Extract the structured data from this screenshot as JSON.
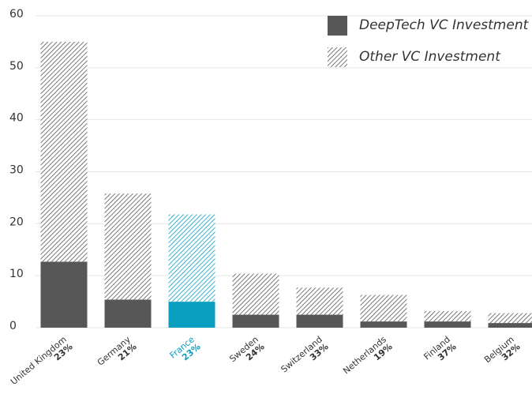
{
  "chart_data": {
    "type": "stacked_bar",
    "categories": [
      "United Kingdom",
      "Germany",
      "France",
      "Sweden",
      "Switzerland",
      "Netherlands",
      "Finland",
      "Belgium"
    ],
    "shares": {
      "values": [
        23,
        21,
        23,
        24,
        33,
        19,
        37,
        32
      ],
      "value_labels": [
        "23%",
        "21%",
        "23%",
        "24%",
        "33%",
        "19%",
        "37%",
        "32%"
      ]
    },
    "series": [
      {
        "name": "DeepTech VC Investment",
        "color": "#575757",
        "values": [
          12.7,
          5.4,
          5.0,
          2.5,
          2.5,
          1.2,
          1.2,
          0.9
        ]
      },
      {
        "name": "Other VC Investment",
        "color": "#575757",
        "pattern": "hatch",
        "values": [
          42.3,
          20.4,
          16.8,
          7.9,
          5.2,
          5.1,
          2.0,
          1.9
        ]
      }
    ],
    "highlight": "France",
    "highlight_color": "#0a9fc0",
    "ylim": [
      0,
      60
    ],
    "yticks": [
      0,
      10,
      20,
      30,
      40,
      50,
      60
    ],
    "grid": true,
    "legend": "top-right"
  }
}
